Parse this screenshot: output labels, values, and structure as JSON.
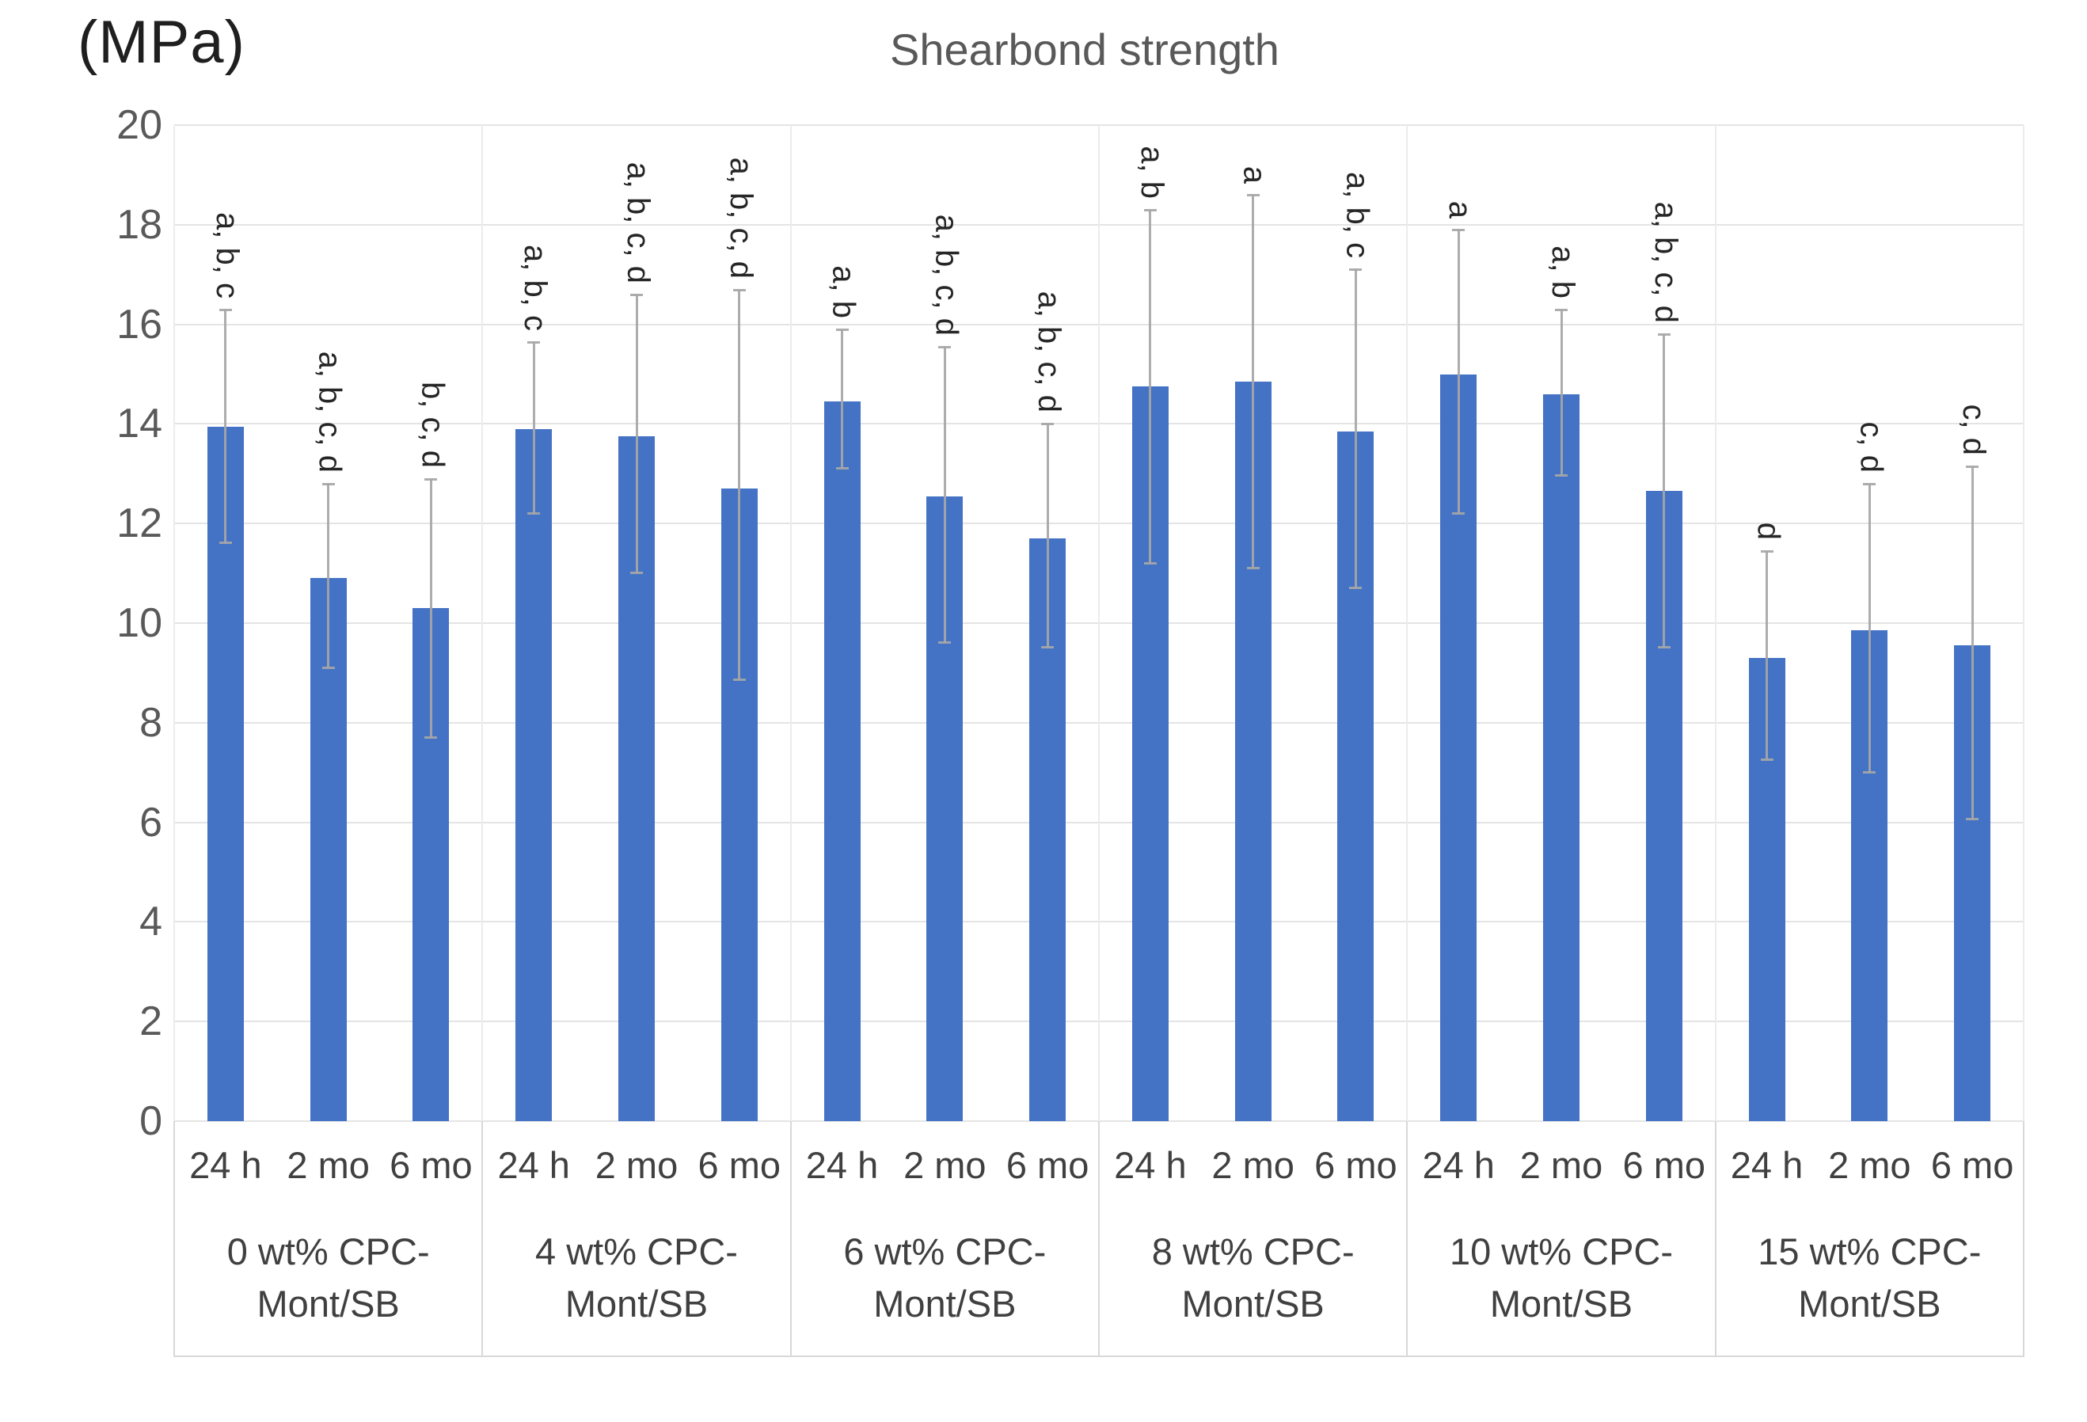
{
  "chart_data": {
    "type": "bar",
    "title": "Shearbond strength",
    "unit_label": "(MPa)",
    "ylabel": "",
    "xlabel": "",
    "ylim": [
      0,
      20
    ],
    "yticks": [
      0,
      2,
      4,
      6,
      8,
      10,
      12,
      14,
      16,
      18,
      20
    ],
    "grid": true,
    "legend": "none",
    "bar_color": "#4472C4",
    "error_bar_color": "#A6A6A6",
    "grid_color": "#E4E4E4",
    "title_color": "#595959",
    "time_labels": [
      "24 h",
      "2 mo",
      "6 mo"
    ],
    "groups": [
      {
        "name": "0 wt% CPC-Mont/SB",
        "name_lines": [
          "0 wt% CPC-",
          "Mont/SB"
        ],
        "bars": [
          {
            "time": "24 h",
            "value": 13.95,
            "err_low": 11.6,
            "err_high": 16.3,
            "sig": "a, b, c"
          },
          {
            "time": "2 mo",
            "value": 10.9,
            "err_low": 9.1,
            "err_high": 12.8,
            "sig": "a, b, c, d"
          },
          {
            "time": "6 mo",
            "value": 10.3,
            "err_low": 7.7,
            "err_high": 12.9,
            "sig": "b, c, d"
          }
        ]
      },
      {
        "name": "4 wt% CPC-Mont/SB",
        "name_lines": [
          "4 wt% CPC-",
          "Mont/SB"
        ],
        "bars": [
          {
            "time": "24 h",
            "value": 13.9,
            "err_low": 12.2,
            "err_high": 15.65,
            "sig": "a, b, c"
          },
          {
            "time": "2 mo",
            "value": 13.75,
            "err_low": 11.0,
            "err_high": 16.6,
            "sig": "a, b, c, d"
          },
          {
            "time": "6 mo",
            "value": 12.7,
            "err_low": 8.85,
            "err_high": 16.7,
            "sig": "a, b, c, d"
          }
        ]
      },
      {
        "name": "6 wt% CPC-Mont/SB",
        "name_lines": [
          "6 wt% CPC-",
          "Mont/SB"
        ],
        "bars": [
          {
            "time": "24 h",
            "value": 14.45,
            "err_low": 13.1,
            "err_high": 15.9,
            "sig": "a, b"
          },
          {
            "time": "2 mo",
            "value": 12.55,
            "err_low": 9.6,
            "err_high": 15.55,
            "sig": "a, b, c, d"
          },
          {
            "time": "6 mo",
            "value": 11.7,
            "err_low": 9.5,
            "err_high": 14.0,
            "sig": "a, b, c, d"
          }
        ]
      },
      {
        "name": "8 wt% CPC-Mont/SB",
        "name_lines": [
          "8 wt% CPC-",
          "Mont/SB"
        ],
        "bars": [
          {
            "time": "24 h",
            "value": 14.75,
            "err_low": 11.2,
            "err_high": 18.3,
            "sig": "a, b"
          },
          {
            "time": "2 mo",
            "value": 14.85,
            "err_low": 11.1,
            "err_high": 18.6,
            "sig": "a"
          },
          {
            "time": "6 mo",
            "value": 13.85,
            "err_low": 10.7,
            "err_high": 17.1,
            "sig": "a, b, c"
          }
        ]
      },
      {
        "name": "10 wt% CPC-Mont/SB",
        "name_lines": [
          "10 wt% CPC-",
          "Mont/SB"
        ],
        "bars": [
          {
            "time": "24 h",
            "value": 15.0,
            "err_low": 12.2,
            "err_high": 17.9,
            "sig": "a"
          },
          {
            "time": "2 mo",
            "value": 14.6,
            "err_low": 12.95,
            "err_high": 16.3,
            "sig": "a, b"
          },
          {
            "time": "6 mo",
            "value": 12.65,
            "err_low": 9.5,
            "err_high": 15.8,
            "sig": "a, b, c, d"
          }
        ]
      },
      {
        "name": "15 wt% CPC-Mont/SB",
        "name_lines": [
          "15 wt% CPC-",
          "Mont/SB"
        ],
        "bars": [
          {
            "time": "24 h",
            "value": 9.3,
            "err_low": 7.25,
            "err_high": 11.45,
            "sig": "d"
          },
          {
            "time": "2 mo",
            "value": 9.85,
            "err_low": 7.0,
            "err_high": 12.8,
            "sig": "c, d"
          },
          {
            "time": "6 mo",
            "value": 9.55,
            "err_low": 6.05,
            "err_high": 13.15,
            "sig": "c, d"
          }
        ]
      }
    ]
  }
}
